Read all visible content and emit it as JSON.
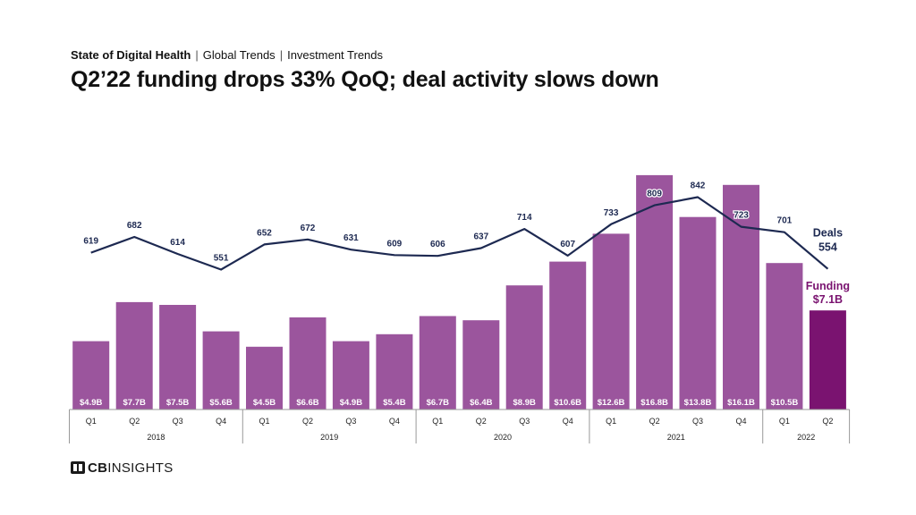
{
  "header": {
    "breadcrumb": [
      "State of Digital Health",
      "Global Trends",
      "Investment Trends"
    ],
    "separator": "|",
    "title": "Q2’22 funding drops 33% QoQ; deal activity slows down"
  },
  "logo": {
    "cb": "CB",
    "insights": "INSIGHTS"
  },
  "colors": {
    "bar": "#9b559d",
    "bar_highlight": "#7a1370",
    "line": "#1d2951",
    "funding_label": "#7a1370",
    "text": "#222222",
    "axis": "#999999"
  },
  "chart_data": {
    "type": "bar",
    "categories": [
      "Q1",
      "Q2",
      "Q3",
      "Q4",
      "Q1",
      "Q2",
      "Q3",
      "Q4",
      "Q1",
      "Q2",
      "Q3",
      "Q4",
      "Q1",
      "Q2",
      "Q3",
      "Q4",
      "Q1",
      "Q2"
    ],
    "years": [
      {
        "label": "2018",
        "count": 4
      },
      {
        "label": "2019",
        "count": 4
      },
      {
        "label": "2020",
        "count": 4
      },
      {
        "label": "2021",
        "count": 4
      },
      {
        "label": "2022",
        "count": 2
      }
    ],
    "series": [
      {
        "name": "Funding",
        "kind": "bar",
        "unit": "$B",
        "values": [
          4.9,
          7.7,
          7.5,
          5.6,
          4.5,
          6.6,
          4.9,
          5.4,
          6.7,
          6.4,
          8.9,
          10.6,
          12.6,
          16.8,
          13.8,
          16.1,
          10.5,
          7.1
        ],
        "labels": [
          "$4.9B",
          "$7.7B",
          "$7.5B",
          "$5.6B",
          "$4.5B",
          "$6.6B",
          "$4.9B",
          "$5.4B",
          "$6.7B",
          "$6.4B",
          "$8.9B",
          "$10.6B",
          "$12.6B",
          "$16.8B",
          "$13.8B",
          "$16.1B",
          "$10.5B",
          ""
        ]
      },
      {
        "name": "Deals",
        "kind": "line",
        "values": [
          619,
          682,
          614,
          551,
          652,
          672,
          631,
          609,
          606,
          637,
          714,
          607,
          733,
          809,
          842,
          723,
          701,
          554
        ],
        "labels": [
          "619",
          "682",
          "614",
          "551",
          "652",
          "672",
          "631",
          "609",
          "606",
          "637",
          "714",
          "607",
          "733",
          "809",
          "842",
          "723",
          "701",
          ""
        ]
      }
    ],
    "end_labels": {
      "deals_name": "Deals",
      "deals_value": "554",
      "funding_name": "Funding",
      "funding_value": "$7.1B"
    },
    "highlight_index": 17
  }
}
